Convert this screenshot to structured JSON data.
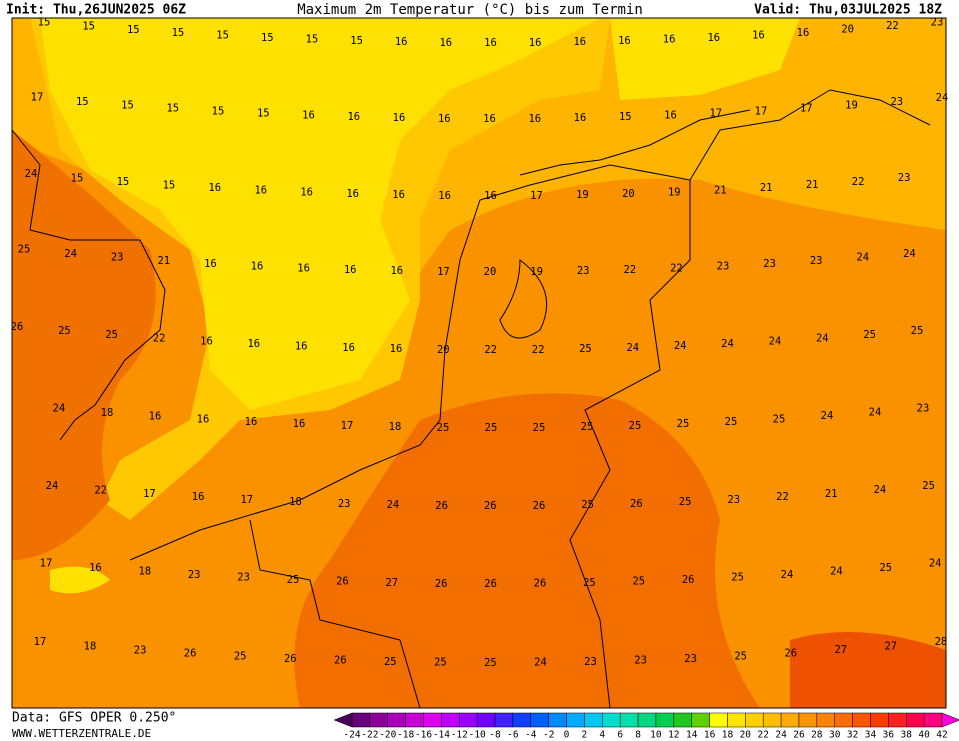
{
  "header": {
    "init": "Init: Thu,26JUN2025 06Z",
    "title": "Maximum 2m Temperatur (°C) bis zum Termin",
    "valid": "Valid: Thu,03JUL2025 18Z"
  },
  "map": {
    "rows": [
      [
        15,
        15,
        15,
        15,
        15,
        15,
        15,
        15,
        16,
        16,
        16,
        16,
        16,
        16,
        16,
        16,
        16,
        16,
        20,
        22,
        23
      ],
      [
        17,
        15,
        15,
        15,
        15,
        15,
        16,
        16,
        16,
        16,
        16,
        16,
        16,
        15,
        16,
        17,
        17,
        17,
        19,
        23,
        24
      ],
      [
        24,
        15,
        15,
        15,
        16,
        16,
        16,
        16,
        16,
        16,
        16,
        17,
        19,
        20,
        19,
        21,
        21,
        21,
        22,
        23
      ],
      [
        25,
        24,
        23,
        21,
        16,
        16,
        16,
        16,
        16,
        17,
        20,
        19,
        23,
        22,
        22,
        23,
        23,
        23,
        24,
        24
      ],
      [
        26,
        25,
        25,
        22,
        16,
        16,
        16,
        16,
        16,
        20,
        22,
        22,
        25,
        24,
        24,
        24,
        24,
        24,
        25,
        25
      ],
      [
        24,
        18,
        16,
        16,
        16,
        16,
        17,
        18,
        25,
        25,
        25,
        25,
        25,
        25,
        25,
        25,
        24,
        24,
        23
      ],
      [
        24,
        22,
        17,
        16,
        17,
        18,
        23,
        24,
        26,
        26,
        26,
        25,
        26,
        25,
        23,
        22,
        21,
        24,
        25
      ],
      [
        17,
        16,
        18,
        23,
        23,
        25,
        26,
        27,
        26,
        26,
        26,
        25,
        25,
        26,
        25,
        24,
        24,
        25,
        24
      ],
      [
        17,
        18,
        23,
        26,
        25,
        26,
        26,
        25,
        25,
        25,
        24,
        23,
        23,
        23,
        25,
        26,
        27,
        27,
        28
      ]
    ]
  },
  "colorbar": {
    "ticks": [
      -24,
      -22,
      -20,
      -18,
      -16,
      -14,
      -12,
      -10,
      -8,
      -6,
      -4,
      -2,
      0,
      2,
      4,
      6,
      8,
      10,
      12,
      14,
      16,
      18,
      20,
      22,
      24,
      26,
      28,
      30,
      32,
      34,
      36,
      38,
      40,
      42
    ],
    "colors": [
      "#4a0058",
      "#660078",
      "#8a0098",
      "#a800b8",
      "#c800d8",
      "#e000f0",
      "#c000ff",
      "#9a00ff",
      "#7000ff",
      "#4020ff",
      "#1040ff",
      "#0060ff",
      "#0088ff",
      "#00aaff",
      "#00c8f0",
      "#00dcd0",
      "#00e0a8",
      "#00d880",
      "#00d050",
      "#20c820",
      "#60d000",
      "#ffff00",
      "#ffe600",
      "#ffd000",
      "#ffbe00",
      "#ffaa00",
      "#ff9600",
      "#ff8200",
      "#ff6c00",
      "#ff5600",
      "#ff3c00",
      "#ff2020",
      "#ff0050",
      "#ff0080",
      "#ff00b0",
      "#ff00d8"
    ]
  },
  "footer": {
    "source": "Data: GFS OPER 0.250°",
    "site": "WWW.WETTERZENTRALE.DE"
  }
}
